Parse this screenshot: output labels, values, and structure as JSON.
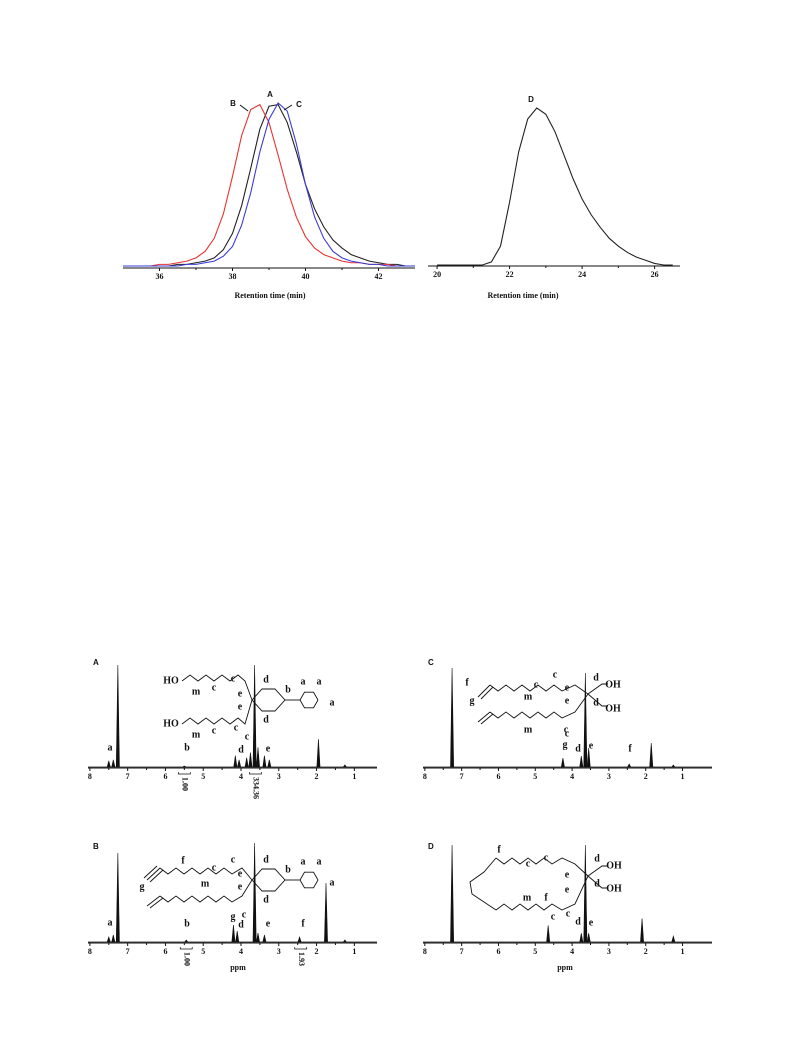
{
  "chart_data": [
    {
      "type": "line",
      "xlabel": "Retention time (min)",
      "xlim": [
        35,
        43
      ],
      "xticks": [
        36,
        38,
        40,
        42
      ],
      "ylim": [
        0,
        1
      ],
      "x": [
        35,
        35.25,
        35.5,
        35.75,
        36,
        36.25,
        36.5,
        36.75,
        37,
        37.25,
        37.5,
        37.75,
        38,
        38.25,
        38.5,
        38.75,
        39,
        39.25,
        39.5,
        39.75,
        40,
        40.25,
        40.5,
        40.75,
        41,
        41.25,
        41.5,
        41.75,
        42,
        42.25,
        42.5,
        42.75,
        43
      ],
      "series": [
        {
          "name": "A",
          "color": "#222222",
          "values": [
            0,
            0,
            0,
            0,
            0,
            0,
            0.01,
            0.01,
            0.02,
            0.03,
            0.05,
            0.1,
            0.2,
            0.37,
            0.6,
            0.84,
            0.98,
            0.99,
            0.88,
            0.7,
            0.5,
            0.35,
            0.24,
            0.16,
            0.11,
            0.07,
            0.05,
            0.03,
            0.02,
            0.01,
            0.01,
            0,
            0
          ]
        },
        {
          "name": "B",
          "color": "#e8322e",
          "values": [
            0,
            0,
            0,
            0,
            0.01,
            0.01,
            0.02,
            0.03,
            0.05,
            0.09,
            0.17,
            0.32,
            0.55,
            0.8,
            0.96,
            0.99,
            0.88,
            0.68,
            0.47,
            0.3,
            0.18,
            0.11,
            0.07,
            0.05,
            0.03,
            0.02,
            0.02,
            0.01,
            0.01,
            0.01,
            0,
            0,
            0
          ]
        },
        {
          "name": "C",
          "color": "#3a3ad8",
          "values": [
            0,
            0,
            0,
            0,
            0,
            0,
            0,
            0.01,
            0.01,
            0.02,
            0.03,
            0.06,
            0.12,
            0.25,
            0.45,
            0.7,
            0.9,
            1,
            0.95,
            0.75,
            0.5,
            0.3,
            0.17,
            0.09,
            0.05,
            0.03,
            0.02,
            0.01,
            0.01,
            0,
            0,
            0,
            0
          ]
        }
      ]
    },
    {
      "type": "line",
      "xlabel": "Retention time (min)",
      "xlim": [
        19.75,
        26.7
      ],
      "xticks": [
        20,
        22,
        24,
        26
      ],
      "ylim": [
        0,
        1
      ],
      "x": [
        20,
        20.25,
        20.5,
        20.75,
        21,
        21.25,
        21.5,
        21.75,
        22,
        22.25,
        22.5,
        22.75,
        23,
        23.25,
        23.5,
        23.75,
        24,
        24.25,
        24.5,
        24.75,
        25,
        25.25,
        25.5,
        25.75,
        26,
        26.25,
        26.5
      ],
      "series": [
        {
          "name": "D",
          "color": "#222222",
          "values": [
            0,
            0,
            0,
            0,
            0,
            0,
            0.02,
            0.12,
            0.4,
            0.72,
            0.93,
            1,
            0.96,
            0.85,
            0.7,
            0.55,
            0.42,
            0.32,
            0.24,
            0.17,
            0.12,
            0.08,
            0.05,
            0.03,
            0.01,
            0,
            0
          ]
        }
      ]
    },
    {
      "type": "spectrum",
      "title": "A",
      "xlim": [
        8.05,
        0.4
      ],
      "xticks": [
        8,
        7,
        6,
        5,
        4,
        3,
        2,
        1
      ],
      "ylim": [
        0,
        100
      ],
      "x": [
        7.5,
        7.38,
        7.26,
        5.5,
        4.15,
        4.05,
        3.85,
        3.75,
        3.64,
        3.55,
        3.38,
        3.25,
        1.95,
        1.25
      ],
      "values": [
        7,
        8,
        100,
        2,
        12,
        8,
        10,
        15,
        100,
        20,
        12,
        8,
        28,
        3
      ],
      "integrals": [
        {
          "value": 1,
          "label": "1.00"
        },
        {
          "value": 334.36,
          "label": "334.36"
        }
      ],
      "labels": [
        "a",
        "b",
        "d",
        "c",
        "e",
        "HO",
        "m",
        "c",
        "c",
        "e",
        "e",
        "d",
        "b",
        "a",
        "a",
        "a",
        "d",
        "HO",
        "m",
        "c",
        "c"
      ]
    },
    {
      "type": "spectrum",
      "title": "B",
      "xlabel": "ppm",
      "xlim": [
        8.05,
        0.4
      ],
      "xticks": [
        8,
        7,
        6,
        5,
        4,
        3,
        2,
        1
      ],
      "ylim": [
        0,
        100
      ],
      "x": [
        7.5,
        7.38,
        7.26,
        5.45,
        4.2,
        4.1,
        3.64,
        3.55,
        3.38,
        2.45,
        1.75,
        1.25
      ],
      "values": [
        6,
        8,
        90,
        3,
        18,
        12,
        100,
        10,
        8,
        6,
        60,
        3
      ],
      "integrals": [
        {
          "value": 1,
          "label": "1.00"
        },
        {
          "value": 1.93,
          "label": "1.93"
        }
      ],
      "labels": [
        "a",
        "b",
        "g",
        "d",
        "e",
        "f",
        "g",
        "f",
        "m",
        "c",
        "c",
        "e",
        "e",
        "d",
        "b",
        "a",
        "a",
        "a",
        "d",
        "c"
      ]
    },
    {
      "type": "spectrum",
      "title": "C",
      "xlim": [
        8.05,
        0.2
      ],
      "xticks": [
        8,
        7,
        6,
        5,
        4,
        3,
        2,
        1
      ],
      "ylim": [
        0,
        100
      ],
      "x": [
        7.26,
        4.25,
        3.75,
        3.64,
        3.55,
        2.45,
        1.85,
        1.25
      ],
      "values": [
        100,
        10,
        12,
        95,
        20,
        4,
        25,
        3
      ],
      "labels": [
        "g",
        "d",
        "c",
        "e",
        "f",
        "f",
        "g",
        "m",
        "c",
        "c",
        "e",
        "e",
        "d",
        "OH",
        "d",
        "OH",
        "m",
        "c"
      ]
    },
    {
      "type": "spectrum",
      "title": "D",
      "xlabel": "ppm",
      "xlim": [
        8.05,
        0.2
      ],
      "xticks": [
        8,
        7,
        6,
        5,
        4,
        3,
        2,
        1
      ],
      "ylim": [
        0,
        100
      ],
      "x": [
        7.26,
        4.65,
        3.75,
        3.64,
        3.55,
        2.1,
        1.25
      ],
      "values": [
        100,
        18,
        10,
        100,
        10,
        25,
        7
      ],
      "labels": [
        "f",
        "d",
        "c",
        "e",
        "f",
        "c",
        "c",
        "e",
        "e",
        "d",
        "OH",
        "d",
        "OH",
        "m",
        "c"
      ]
    }
  ]
}
